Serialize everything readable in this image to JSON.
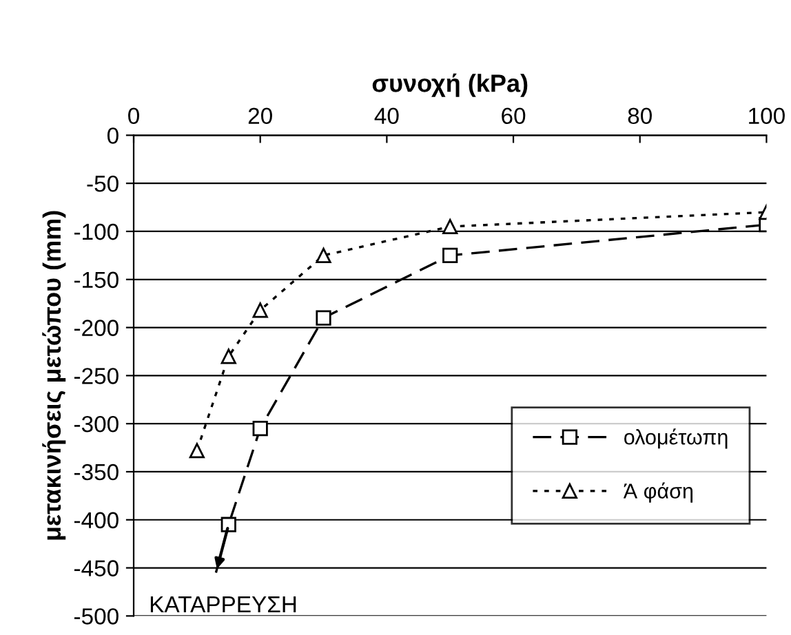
{
  "chart_data": {
    "type": "line",
    "xlabel": "συνοχή (kPa)",
    "ylabel": "μετακινήσεις μετώπου (mm)",
    "xlim": [
      0,
      100
    ],
    "xticks": [
      0,
      20,
      40,
      60,
      80,
      100
    ],
    "ylim": [
      -500,
      0
    ],
    "yticks": [
      -500,
      -450,
      -400,
      -350,
      -300,
      -250,
      -200,
      -150,
      -100,
      -50,
      0
    ],
    "grid": "y",
    "legend": "bottom right",
    "series": [
      {
        "name": "ολομέτωπη",
        "color": "#000000",
        "marker": "square",
        "line_style": "dashed",
        "x": [
          13,
          15,
          20,
          30,
          50,
          100
        ],
        "values": [
          -455,
          -405,
          -305,
          -190,
          -125,
          -93
        ]
      },
      {
        "name": "Ά φάση",
        "color": "#000000",
        "marker": "triangle",
        "line_style": "dotted",
        "x": [
          10,
          15,
          20,
          30,
          50,
          100
        ],
        "values": [
          -328,
          -230,
          -182,
          -125,
          -95,
          -80
        ]
      }
    ],
    "annotations": [
      "ΚΑΤΑΡΡΕΥΣΗ"
    ]
  }
}
